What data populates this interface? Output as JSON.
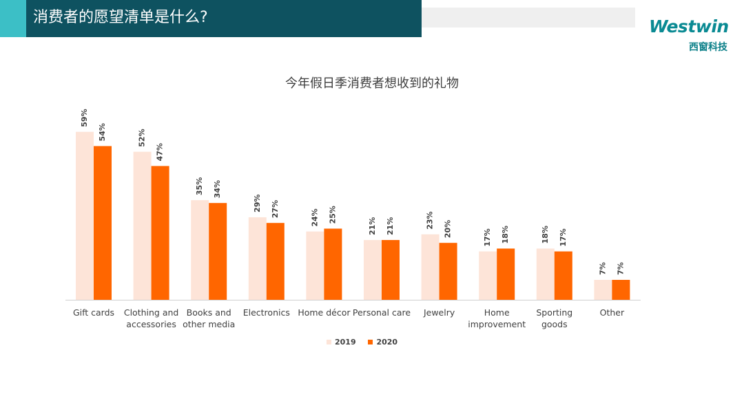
{
  "header": {
    "title": "消费者的愿望清单是什么?"
  },
  "logo": {
    "word": "Westwin",
    "cn": "西窗科技"
  },
  "colors": {
    "title_bar": "#0e5260",
    "title_accent": "#3cbfc6",
    "logo": "#0a8a93",
    "series_2019": "#fde4d8",
    "series_2020": "#ff6600"
  },
  "chart_data": {
    "type": "bar",
    "title": "今年假日季消费者想收到的礼物",
    "categories": [
      [
        "Gift cards"
      ],
      [
        "Clothing and",
        "accessories"
      ],
      [
        "Books and",
        "other media"
      ],
      [
        "Electronics"
      ],
      [
        "Home décor"
      ],
      [
        "Personal care"
      ],
      [
        "Jewelry"
      ],
      [
        "Home",
        "improvement"
      ],
      [
        "Sporting",
        "goods"
      ],
      [
        "Other"
      ]
    ],
    "series": [
      {
        "name": "2019",
        "color": "#fde4d8",
        "values": [
          59,
          52,
          35,
          29,
          24,
          21,
          23,
          17,
          18,
          7
        ]
      },
      {
        "name": "2020",
        "color": "#ff6600",
        "values": [
          54,
          47,
          34,
          27,
          25,
          21,
          20,
          18,
          17,
          7
        ]
      }
    ],
    "value_suffix": "%",
    "ylim": [
      0,
      60
    ],
    "legend": "bottom-center",
    "grid": false
  }
}
